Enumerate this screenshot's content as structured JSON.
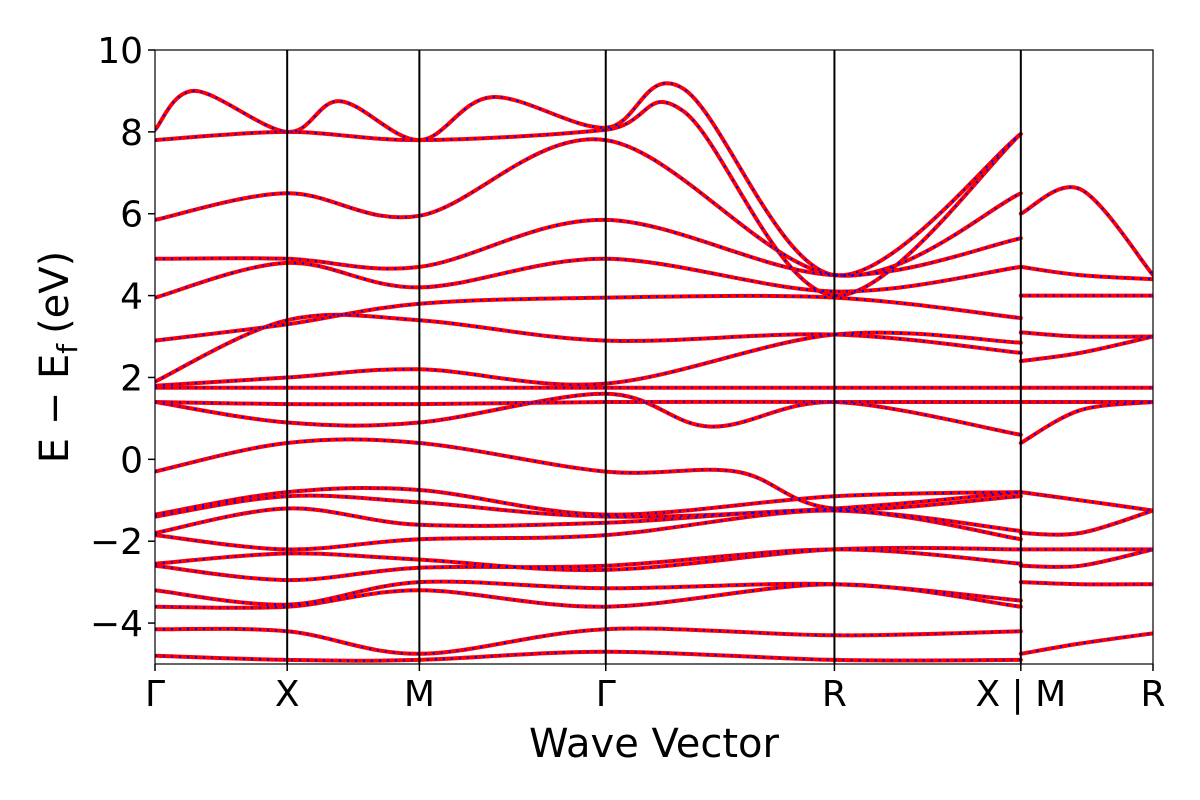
{
  "chart_data": {
    "type": "line",
    "title": "",
    "xlabel": "Wave Vector",
    "ylabel": {
      "main": "E − E",
      "subscript": "f",
      "unit": "(eV)"
    },
    "ylim": [
      -5,
      10
    ],
    "yticks": [
      -4,
      -2,
      0,
      2,
      4,
      6,
      8,
      10
    ],
    "ytick_labels": [
      "−4",
      "−2",
      "0",
      "2",
      "4",
      "6",
      "8",
      "10"
    ],
    "xlim": [
      0,
      7.55
    ],
    "kpoints": [
      {
        "label": "Γ",
        "x": 0
      },
      {
        "label": "X",
        "x": 1.0
      },
      {
        "label": "M",
        "x": 2.0
      },
      {
        "label": "Γ",
        "x": 3.41
      },
      {
        "label": "R",
        "x": 5.14
      },
      {
        "label": "X | M",
        "x": 6.55
      },
      {
        "label": "R",
        "x": 7.55
      }
    ],
    "grid": false,
    "legend": "none",
    "series_styles": [
      {
        "color": "#ff0000",
        "dash": "solid"
      },
      {
        "color": "#0000ff",
        "dash": "dotted"
      }
    ],
    "bands": [
      [
        [
          0,
          -4.15
        ],
        [
          1.0,
          -4.2
        ],
        [
          2.0,
          -4.75
        ],
        [
          3.41,
          -4.15
        ],
        [
          5.14,
          -4.3
        ],
        [
          6.55,
          -4.2
        ]
      ],
      [
        [
          0,
          -3.6
        ],
        [
          1.0,
          -3.6
        ],
        [
          2.0,
          -3.2
        ],
        [
          3.41,
          -3.6
        ],
        [
          5.14,
          -3.05
        ],
        [
          6.55,
          -3.6
        ]
      ],
      [
        [
          0,
          -3.2
        ],
        [
          1.0,
          -3.55
        ],
        [
          2.0,
          -3.0
        ],
        [
          3.41,
          -3.15
        ],
        [
          5.14,
          -3.05
        ],
        [
          6.55,
          -3.45
        ]
      ],
      [
        [
          0,
          -2.6
        ],
        [
          1.0,
          -2.95
        ],
        [
          2.0,
          -2.65
        ],
        [
          3.41,
          -2.6
        ],
        [
          5.14,
          -2.2
        ],
        [
          6.55,
          -2.55
        ]
      ],
      [
        [
          0,
          -2.55
        ],
        [
          1.0,
          -2.3
        ],
        [
          2.0,
          -2.45
        ],
        [
          3.41,
          -2.7
        ],
        [
          5.14,
          -2.2
        ],
        [
          6.55,
          -2.2
        ]
      ],
      [
        [
          0,
          -1.85
        ],
        [
          1.0,
          -2.2
        ],
        [
          2.0,
          -1.95
        ],
        [
          3.41,
          -1.85
        ],
        [
          5.14,
          -1.25
        ],
        [
          6.55,
          -1.95
        ]
      ],
      [
        [
          0,
          -1.8
        ],
        [
          1.0,
          -1.2
        ],
        [
          2.0,
          -1.6
        ],
        [
          3.41,
          -1.55
        ],
        [
          5.14,
          -1.25
        ],
        [
          6.55,
          -1.75
        ]
      ],
      [
        [
          0,
          -1.4
        ],
        [
          1.0,
          -0.9
        ],
        [
          2.0,
          -1.05
        ],
        [
          3.41,
          -1.4
        ],
        [
          5.14,
          -1.2
        ],
        [
          6.55,
          -0.8
        ]
      ],
      [
        [
          0,
          -1.35
        ],
        [
          1.0,
          -0.8
        ],
        [
          2.0,
          -0.75
        ],
        [
          3.41,
          -1.35
        ],
        [
          5.14,
          -0.9
        ],
        [
          6.55,
          -0.8
        ]
      ],
      [
        [
          0,
          -0.3
        ],
        [
          1.0,
          0.4
        ],
        [
          2.0,
          0.4
        ],
        [
          3.41,
          -0.3
        ],
        [
          4.4,
          -0.3
        ],
        [
          5.14,
          -1.2
        ],
        [
          6.55,
          -0.9
        ]
      ],
      [
        [
          0,
          1.4
        ],
        [
          1.0,
          0.9
        ],
        [
          2.0,
          0.9
        ],
        [
          3.41,
          1.6
        ],
        [
          4.2,
          0.8
        ],
        [
          5.14,
          1.4
        ],
        [
          6.55,
          0.6
        ]
      ],
      [
        [
          0,
          1.4
        ],
        [
          1.0,
          1.35
        ],
        [
          2.0,
          1.35
        ],
        [
          3.41,
          1.4
        ],
        [
          5.14,
          1.4
        ],
        [
          6.55,
          1.4
        ]
      ],
      [
        [
          0,
          1.75
        ],
        [
          1.0,
          1.75
        ],
        [
          2.0,
          1.75
        ],
        [
          3.41,
          1.75
        ],
        [
          5.14,
          1.75
        ],
        [
          6.55,
          1.75
        ]
      ],
      [
        [
          0,
          1.8
        ],
        [
          1.0,
          2.0
        ],
        [
          2.0,
          2.2
        ],
        [
          3.41,
          1.85
        ],
        [
          5.14,
          3.05
        ],
        [
          6.55,
          2.85
        ]
      ],
      [
        [
          0,
          1.9
        ],
        [
          1.0,
          3.4
        ],
        [
          2.0,
          3.4
        ],
        [
          3.41,
          2.9
        ],
        [
          5.14,
          3.05
        ],
        [
          6.55,
          2.6
        ]
      ],
      [
        [
          0,
          2.9
        ],
        [
          1.0,
          3.3
        ],
        [
          2.0,
          3.8
        ],
        [
          3.41,
          3.95
        ],
        [
          5.14,
          3.95
        ],
        [
          6.55,
          3.45
        ]
      ],
      [
        [
          0,
          3.95
        ],
        [
          1.0,
          4.8
        ],
        [
          2.0,
          4.2
        ],
        [
          3.41,
          4.9
        ],
        [
          5.14,
          4.1
        ],
        [
          6.55,
          4.7
        ]
      ],
      [
        [
          0,
          4.9
        ],
        [
          1.0,
          4.9
        ],
        [
          2.0,
          4.7
        ],
        [
          3.41,
          5.85
        ],
        [
          5.14,
          4.5
        ],
        [
          6.55,
          5.4
        ]
      ],
      [
        [
          0,
          5.85
        ],
        [
          1.0,
          6.5
        ],
        [
          2.0,
          5.95
        ],
        [
          3.41,
          7.8
        ],
        [
          5.14,
          4.5
        ],
        [
          6.55,
          6.5
        ]
      ],
      [
        [
          0,
          7.8
        ],
        [
          1.0,
          8.0
        ],
        [
          2.0,
          7.8
        ],
        [
          3.41,
          8.05
        ],
        [
          4.0,
          8.5
        ],
        [
          5.14,
          4.0
        ],
        [
          6.55,
          7.95
        ]
      ],
      [
        [
          0,
          8.05
        ],
        [
          0.3,
          9.0
        ],
        [
          1.0,
          8.0
        ],
        [
          1.4,
          8.75
        ],
        [
          2.0,
          7.8
        ],
        [
          2.55,
          8.85
        ],
        [
          3.41,
          8.1
        ],
        [
          4.0,
          9.05
        ],
        [
          5.14,
          4.5
        ],
        [
          6.55,
          7.95
        ]
      ],
      [
        [
          0,
          -4.8
        ],
        [
          1.0,
          -4.9
        ],
        [
          2.0,
          -4.9
        ],
        [
          3.41,
          -4.7
        ],
        [
          5.14,
          -4.9
        ],
        [
          6.55,
          -4.9
        ]
      ],
      [
        [
          6.55,
          6.0
        ],
        [
          7.0,
          6.6
        ],
        [
          7.55,
          4.5
        ]
      ],
      [
        [
          6.55,
          4.7
        ],
        [
          7.0,
          4.5
        ],
        [
          7.55,
          4.4
        ]
      ],
      [
        [
          6.55,
          4.0
        ],
        [
          7.0,
          4.0
        ],
        [
          7.55,
          4.0
        ]
      ],
      [
        [
          6.55,
          3.1
        ],
        [
          7.0,
          3.0
        ],
        [
          7.55,
          3.0
        ]
      ],
      [
        [
          6.55,
          2.4
        ],
        [
          7.0,
          2.6
        ],
        [
          7.55,
          3.0
        ]
      ],
      [
        [
          6.55,
          1.75
        ],
        [
          7.55,
          1.75
        ]
      ],
      [
        [
          6.55,
          1.4
        ],
        [
          7.55,
          1.4
        ]
      ],
      [
        [
          6.55,
          0.4
        ],
        [
          7.0,
          1.2
        ],
        [
          7.55,
          1.4
        ]
      ],
      [
        [
          6.55,
          -0.8
        ],
        [
          7.0,
          -1.0
        ],
        [
          7.55,
          -1.25
        ]
      ],
      [
        [
          6.55,
          -1.8
        ],
        [
          7.0,
          -1.8
        ],
        [
          7.55,
          -1.25
        ]
      ],
      [
        [
          6.55,
          -2.2
        ],
        [
          7.0,
          -2.2
        ],
        [
          7.55,
          -2.2
        ]
      ],
      [
        [
          6.55,
          -2.6
        ],
        [
          7.0,
          -2.6
        ],
        [
          7.55,
          -2.2
        ]
      ],
      [
        [
          6.55,
          -3.0
        ],
        [
          7.0,
          -3.05
        ],
        [
          7.55,
          -3.05
        ]
      ],
      [
        [
          6.55,
          -4.75
        ],
        [
          7.0,
          -4.5
        ],
        [
          7.55,
          -4.25
        ]
      ]
    ]
  }
}
